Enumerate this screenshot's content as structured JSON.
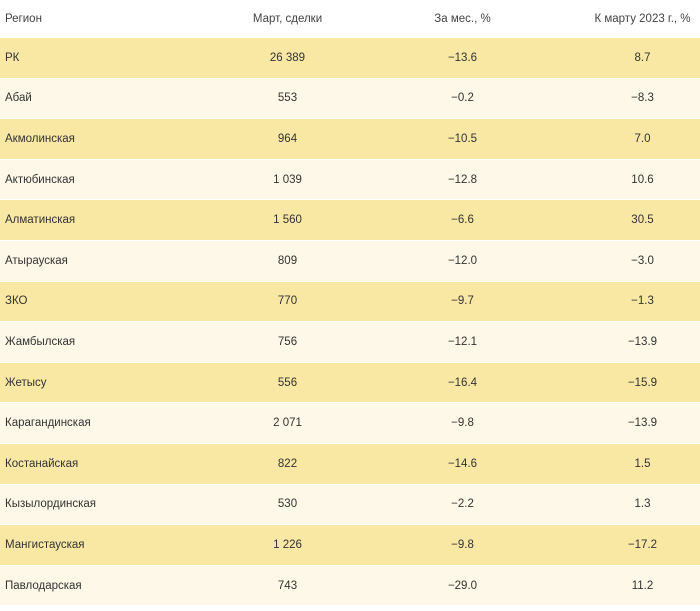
{
  "table": {
    "headers": {
      "region": "Регион",
      "deals": "Март, сделки",
      "month": "За мес., %",
      "year": "К марту 2023 г., %"
    },
    "rows": [
      {
        "region": "РК",
        "deals": "26 389",
        "month": "−13.6",
        "year": "8.7"
      },
      {
        "region": "Абай",
        "deals": "553",
        "month": "−0.2",
        "year": "−8.3"
      },
      {
        "region": "Акмолинская",
        "deals": "964",
        "month": "−10.5",
        "year": "7.0"
      },
      {
        "region": "Актюбинская",
        "deals": "1 039",
        "month": "−12.8",
        "year": "10.6"
      },
      {
        "region": "Алматинская",
        "deals": "1 560",
        "month": "−6.6",
        "year": "30.5"
      },
      {
        "region": "Атырауская",
        "deals": "809",
        "month": "−12.0",
        "year": "−3.0"
      },
      {
        "region": "ЗКО",
        "deals": "770",
        "month": "−9.7",
        "year": "−1.3"
      },
      {
        "region": "Жамбылская",
        "deals": "756",
        "month": "−12.1",
        "year": "−13.9"
      },
      {
        "region": "Жетысу",
        "deals": "556",
        "month": "−16.4",
        "year": "−15.9"
      },
      {
        "region": "Карагандинская",
        "deals": "2 071",
        "month": "−9.8",
        "year": "−13.9"
      },
      {
        "region": "Костанайская",
        "deals": "822",
        "month": "−14.6",
        "year": "1.5"
      },
      {
        "region": "Кызылординская",
        "deals": "530",
        "month": "−2.2",
        "year": "1.3"
      },
      {
        "region": "Мангистауская",
        "deals": "1 226",
        "month": "−9.8",
        "year": "−17.2"
      },
      {
        "region": "Павлодарская",
        "deals": "743",
        "month": "−29.0",
        "year": "11.2"
      }
    ]
  },
  "colors": {
    "row_odd": "#f9e7a4",
    "row_even": "#fdf8e7",
    "text": "#333333"
  }
}
